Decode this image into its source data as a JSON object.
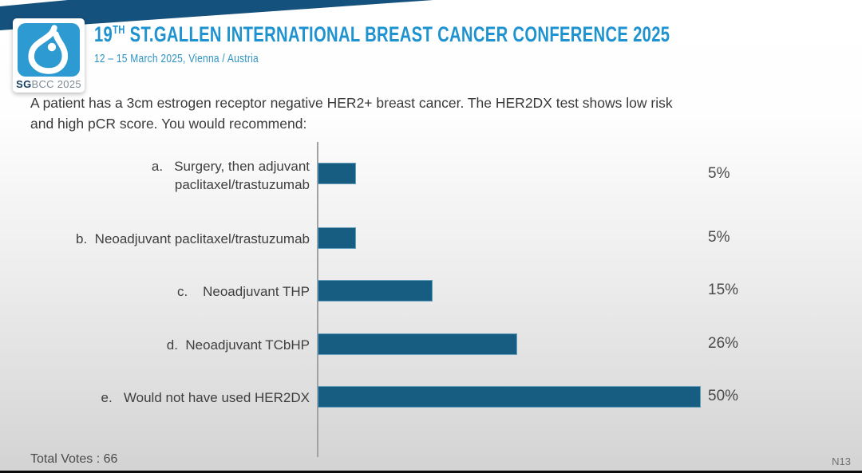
{
  "header": {
    "title_number": "19",
    "title_sup": "TH",
    "title_rest": " ST.GALLEN INTERNATIONAL BREAST CANCER CONFERENCE 2025",
    "subtitle": "12 – 15 March 2025, Vienna / Austria",
    "logo_sg": "SG",
    "logo_rest": "BCC 2025",
    "brand_blue": "#2d9ad2",
    "brand_navy": "#15517d"
  },
  "question": "A patient has a 3cm estrogen receptor negative HER2+ breast cancer. The HER2DX test shows low risk\nand high pCR score. You would recommend:",
  "chart_data": {
    "type": "bar",
    "orientation": "horizontal",
    "title": "",
    "categories": [
      "a.   Surgery, then adjuvant\npaclitaxel/trastuzumab",
      "b.  Neoadjuvant paclitaxel/trastuzumab",
      "c.    Neoadjuvant THP",
      "d.  Neoadjuvant TCbHP",
      "e.   Would not have used HER2DX"
    ],
    "values": [
      5,
      5,
      15,
      26,
      50
    ],
    "value_labels": [
      "5%",
      "5%",
      "15%",
      "26%",
      "50%"
    ],
    "xlim": [
      0,
      55
    ],
    "bar_color": "#175d82",
    "gridlines": false,
    "legend": false
  },
  "footer": {
    "total_votes": "Total Votes : 66",
    "slide_number": "N13"
  }
}
